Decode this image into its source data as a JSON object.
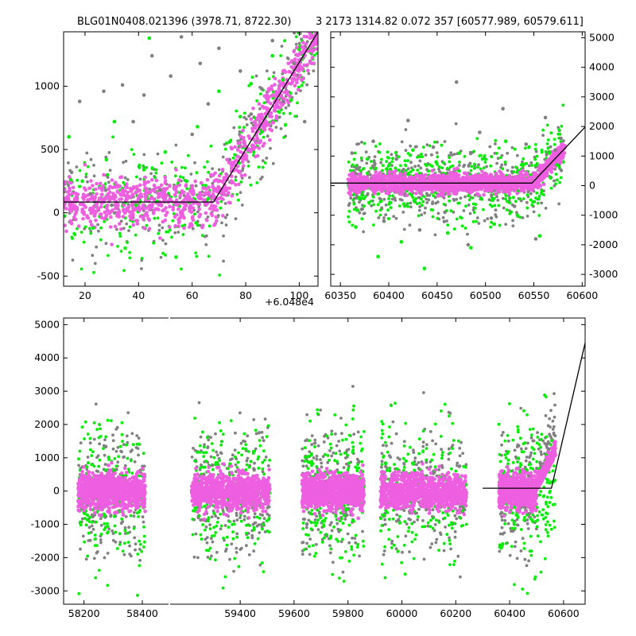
{
  "title_left": "BLG01N0408.021396 (3978.71, 8722.30)",
  "title_right": "3 2173 1314.82 0.072 357 [60577.989, 60579.611]",
  "colors": {
    "grey": "#808080",
    "green": "#00ee00",
    "magenta": "#ee5ee0",
    "line": "#000000"
  },
  "chart_data": [
    {
      "id": "top-left",
      "type": "scatter",
      "title": "",
      "xlabel": "",
      "ylabel": "",
      "x_offset_label": "+6.048e4",
      "xlim": [
        12,
        107
      ],
      "ylim": [
        -580,
        1430
      ],
      "xticks": [
        20,
        40,
        60,
        80,
        100
      ],
      "yticks": [
        -500,
        0,
        500,
        1000
      ],
      "ytick_side": "left",
      "model_line": [
        [
          12,
          85
        ],
        [
          68,
          85
        ],
        [
          107,
          1430
        ]
      ],
      "series": [
        {
          "color": "grey",
          "points": [
            [
              15,
              320
            ],
            [
              18,
              880
            ],
            [
              22,
              150
            ],
            [
              27,
              960
            ],
            [
              30,
              60
            ],
            [
              34,
              1010
            ],
            [
              38,
              720
            ],
            [
              42,
              930
            ],
            [
              45,
              1240
            ],
            [
              48,
              180
            ],
            [
              52,
              1080
            ],
            [
              56,
              1390
            ],
            [
              60,
              620
            ],
            [
              63,
              1180
            ],
            [
              66,
              860
            ],
            [
              70,
              1300
            ],
            [
              74,
              420
            ],
            [
              78,
              1120
            ],
            [
              82,
              780
            ],
            [
              86,
              980
            ],
            [
              90,
              1360
            ],
            [
              94,
              880
            ],
            [
              98,
              1180
            ],
            [
              102,
              720
            ]
          ]
        },
        {
          "color": "green",
          "points": [
            [
              14,
              600
            ],
            [
              19,
              250
            ],
            [
              23,
              -120
            ],
            [
              28,
              420
            ],
            [
              31,
              720
            ],
            [
              35,
              -280
            ],
            [
              39,
              60
            ],
            [
              42,
              340
            ],
            [
              44,
              1380
            ],
            [
              47,
              90
            ],
            [
              50,
              480
            ],
            [
              54,
              -350
            ],
            [
              58,
              250
            ],
            [
              62,
              680
            ],
            [
              66,
              110
            ],
            [
              70,
              960
            ],
            [
              74,
              560
            ],
            [
              78,
              760
            ],
            [
              82,
              1020
            ],
            [
              86,
              640
            ],
            [
              90,
              1240
            ],
            [
              94,
              1050
            ],
            [
              97,
              890
            ],
            [
              100,
              1290
            ]
          ]
        },
        {
          "color": "magenta",
          "points": [
            [
              14,
              240
            ],
            [
              17,
              40
            ],
            [
              20,
              380
            ],
            [
              24,
              -60
            ],
            [
              27,
              300
            ],
            [
              30,
              -250
            ],
            [
              33,
              210
            ],
            [
              36,
              20
            ],
            [
              39,
              160
            ],
            [
              42,
              -120
            ],
            [
              45,
              260
            ],
            [
              48,
              -200
            ],
            [
              51,
              90
            ],
            [
              54,
              340
            ],
            [
              57,
              -40
            ],
            [
              60,
              180
            ],
            [
              64,
              -100
            ],
            [
              67,
              300
            ],
            [
              70,
              160
            ],
            [
              73,
              420
            ],
            [
              76,
              520
            ],
            [
              79,
              650
            ],
            [
              82,
              740
            ],
            [
              85,
              860
            ],
            [
              88,
              930
            ],
            [
              91,
              1060
            ],
            [
              94,
              1120
            ],
            [
              96,
              1180
            ],
            [
              99,
              1250
            ],
            [
              101,
              1310
            ]
          ]
        }
      ]
    },
    {
      "id": "top-right",
      "type": "scatter",
      "title": "",
      "xlabel": "",
      "ylabel": "",
      "xlim": [
        60340,
        60603
      ],
      "ylim": [
        -3400,
        5200
      ],
      "xticks": [
        60350,
        60400,
        60450,
        60500,
        60550,
        60600
      ],
      "yticks": [
        -3000,
        -2000,
        -1000,
        0,
        1000,
        2000,
        3000,
        4000,
        5000
      ],
      "ytick_side": "right",
      "model_line": [
        [
          60340,
          85
        ],
        [
          60548,
          85
        ],
        [
          60603,
          1980
        ]
      ],
      "series": [
        {
          "color": "grey",
          "points": [
            [
              60362,
              1100
            ],
            [
              60372,
              -800
            ],
            [
              60384,
              1500
            ],
            [
              60395,
              -1200
            ],
            [
              60408,
              900
            ],
            [
              60420,
              2200
            ],
            [
              60432,
              -1500
            ],
            [
              60446,
              1300
            ],
            [
              60458,
              -900
            ],
            [
              60470,
              3500
            ],
            [
              60482,
              -2000
            ],
            [
              60494,
              1800
            ],
            [
              60506,
              -1100
            ],
            [
              60518,
              2600
            ],
            [
              60530,
              -700
            ],
            [
              60542,
              1400
            ],
            [
              60552,
              -1800
            ],
            [
              60562,
              2300
            ],
            [
              60572,
              1200
            ],
            [
              60578,
              1600
            ]
          ]
        },
        {
          "color": "green",
          "points": [
            [
              60366,
              -1400
            ],
            [
              60378,
              900
            ],
            [
              60389,
              -2400
            ],
            [
              60401,
              700
            ],
            [
              60413,
              -1900
            ],
            [
              60425,
              1200
            ],
            [
              60437,
              -2800
            ],
            [
              60449,
              800
            ],
            [
              60461,
              -1600
            ],
            [
              60473,
              1100
            ],
            [
              60485,
              -2100
            ],
            [
              60497,
              900
            ],
            [
              60509,
              -1300
            ],
            [
              60521,
              1500
            ],
            [
              60533,
              -1000
            ],
            [
              60545,
              1300
            ],
            [
              60556,
              -1700
            ],
            [
              60566,
              1100
            ],
            [
              60574,
              700
            ]
          ]
        },
        {
          "color": "magenta",
          "points": [
            [
              60360,
              200
            ],
            [
              60368,
              -100
            ],
            [
              60376,
              150
            ],
            [
              60384,
              50
            ],
            [
              60392,
              -150
            ],
            [
              60400,
              180
            ],
            [
              60408,
              -50
            ],
            [
              60416,
              120
            ],
            [
              60424,
              -200
            ],
            [
              60432,
              100
            ],
            [
              60440,
              -80
            ],
            [
              60448,
              220
            ],
            [
              60456,
              0
            ],
            [
              60464,
              -150
            ],
            [
              60472,
              130
            ],
            [
              60480,
              -60
            ],
            [
              60488,
              160
            ],
            [
              60496,
              -120
            ],
            [
              60504,
              90
            ],
            [
              60512,
              -40
            ],
            [
              60520,
              150
            ],
            [
              60528,
              -100
            ],
            [
              60536,
              60
            ],
            [
              60544,
              140
            ],
            [
              60552,
              300
            ],
            [
              60558,
              520
            ],
            [
              60564,
              700
            ],
            [
              60570,
              880
            ],
            [
              60576,
              1020
            ],
            [
              60580,
              1150
            ]
          ]
        }
      ]
    },
    {
      "id": "bottom",
      "type": "scatter",
      "title": "",
      "xlabel": "",
      "ylabel": "",
      "broken_x_axis": true,
      "segments": [
        {
          "xlim": [
            58130,
            58490
          ],
          "xticks": [
            58200,
            58400
          ]
        },
        {
          "xlim": [
            59140,
            60680
          ],
          "xticks": [
            59400,
            59600,
            59800,
            60000,
            60200,
            60400,
            60600
          ]
        }
      ],
      "ylim": [
        -3400,
        5200
      ],
      "yticks": [
        -3000,
        -2000,
        -1000,
        0,
        1000,
        2000,
        3000,
        4000,
        5000
      ],
      "ytick_side": "left",
      "model_line": [
        [
          60300,
          85
        ],
        [
          60555,
          85
        ],
        [
          60680,
          4450
        ]
      ],
      "clusters": [
        {
          "segment": 0,
          "xrange": [
            58180,
            58410
          ]
        },
        {
          "segment": 1,
          "xrange": [
            59220,
            59510
          ]
        },
        {
          "segment": 1,
          "xrange": [
            59630,
            59860
          ]
        },
        {
          "segment": 1,
          "xrange": [
            59920,
            60240
          ]
        },
        {
          "segment": 1,
          "xrange": [
            60360,
            60570
          ]
        }
      ]
    }
  ]
}
